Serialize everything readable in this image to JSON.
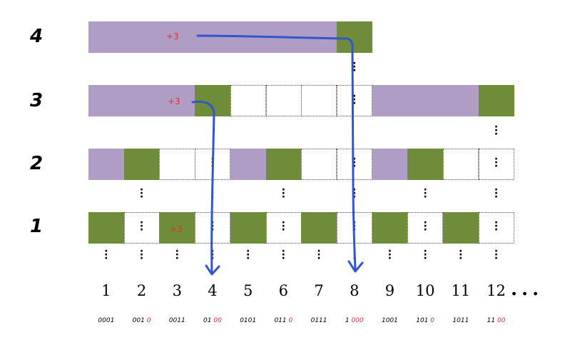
{
  "colors": {
    "purple": "#b09dc6",
    "green": "#6e8c3a",
    "arrow": "#3355cc",
    "plus": "#e03030",
    "binary_highlight": "#e03030"
  },
  "levels": [
    {
      "label": "4",
      "cells": [
        "purple",
        "purple",
        "purple",
        "purple",
        "purple",
        "purple",
        "purple",
        "green"
      ],
      "plus_label": "+3"
    },
    {
      "label": "3",
      "cells": [
        "purple",
        "purple",
        "purple",
        "green",
        "empty",
        "empty",
        "empty",
        "empty",
        "purple",
        "purple",
        "purple",
        "green"
      ],
      "plus_label": "+3"
    },
    {
      "label": "2",
      "cells": [
        "purple",
        "green",
        "empty",
        "empty",
        "purple",
        "green",
        "empty",
        "empty",
        "purple",
        "green",
        "empty",
        "empty"
      ]
    },
    {
      "label": "1",
      "cells": [
        "green",
        "empty",
        "green",
        "empty",
        "green",
        "empty",
        "green",
        "empty",
        "green",
        "empty",
        "green",
        "empty"
      ],
      "plus_label": "+3"
    }
  ],
  "numbers": [
    "1",
    "2",
    "3",
    "4",
    "5",
    "6",
    "7",
    "8",
    "9",
    "10",
    "11",
    "12"
  ],
  "ellipsis": "...",
  "binary": [
    {
      "prefix": "0001",
      "suffix": ""
    },
    {
      "prefix": "001",
      "suffix": "0"
    },
    {
      "prefix": "0011",
      "suffix": ""
    },
    {
      "prefix": "01",
      "suffix": "00"
    },
    {
      "prefix": "0101",
      "suffix": ""
    },
    {
      "prefix": "011",
      "suffix": "0"
    },
    {
      "prefix": "0111",
      "suffix": ""
    },
    {
      "prefix": "1",
      "suffix": "000"
    },
    {
      "prefix": "1001",
      "suffix": ""
    },
    {
      "prefix": "101",
      "suffix": "0"
    },
    {
      "prefix": "1011",
      "suffix": ""
    },
    {
      "prefix": "11",
      "suffix": "00"
    }
  ]
}
